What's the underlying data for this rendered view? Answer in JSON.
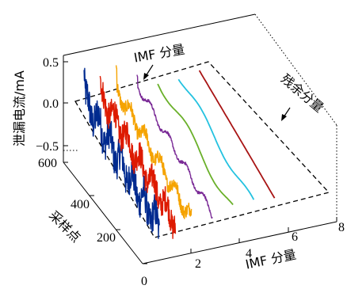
{
  "chart_data": {
    "type": "line",
    "title": "",
    "y_axis": {
      "label": "泄漏电流/mA",
      "ticks": [
        "0.5",
        "0.0",
        "−0.5"
      ],
      "range": [
        -0.6,
        0.6
      ]
    },
    "depth_axis": {
      "label": "采样点",
      "ticks": [
        "0",
        "200",
        "400",
        "600"
      ],
      "range": [
        0,
        600
      ]
    },
    "x_axis": {
      "label": "IMF 分量",
      "ticks": [
        "2",
        "4",
        "6",
        "8"
      ],
      "range": [
        0,
        8
      ]
    },
    "annotations": {
      "imf": "IMF 分量",
      "residual": "残余分量"
    },
    "series": [
      {
        "index": 1,
        "color": "#002a8f",
        "amplitude": 0.45,
        "noise": "high"
      },
      {
        "index": 2,
        "color": "#dd1a00",
        "amplitude": 0.35,
        "noise": "high"
      },
      {
        "index": 3,
        "color": "#f5a300",
        "amplitude": 0.3,
        "noise": "medium"
      },
      {
        "index": 4,
        "color": "#7a2a96",
        "amplitude": 0.2,
        "noise": "low"
      },
      {
        "index": 5,
        "color": "#6ab02a",
        "amplitude": 0.12,
        "noise": "smooth"
      },
      {
        "index": 6,
        "color": "#24c2e0",
        "amplitude": 0.1,
        "noise": "smooth"
      },
      {
        "index": 7,
        "color": "#a81414",
        "amplitude": 0.03,
        "noise": "smooth"
      }
    ]
  }
}
